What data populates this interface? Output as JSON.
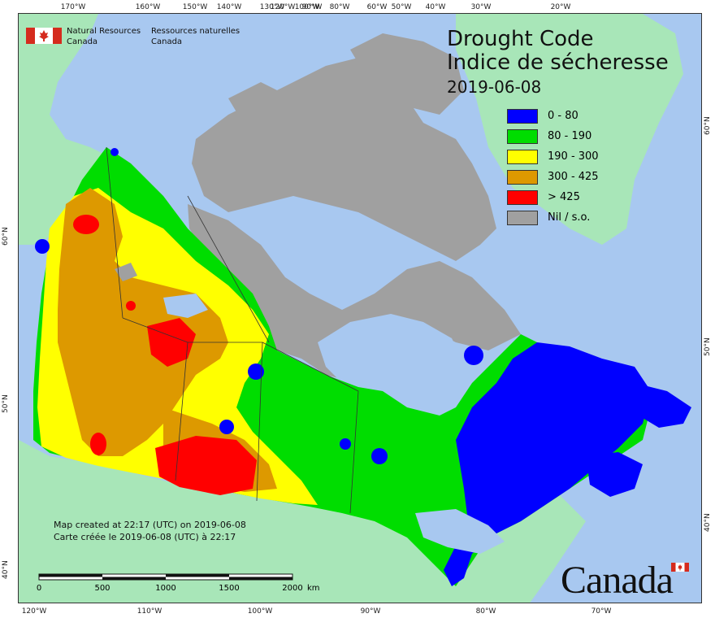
{
  "title": {
    "en": "Drought Code",
    "fr": "Indice de sécheresse",
    "date": "2019-06-08"
  },
  "organization": {
    "en_line1": "Natural Resources",
    "en_line2": "Canada",
    "fr_line1": "Ressources naturelles",
    "fr_line2": "Canada"
  },
  "legend": [
    {
      "label": "0 - 80",
      "color": "#0000ff"
    },
    {
      "label": "80 - 190",
      "color": "#00dd00"
    },
    {
      "label": "190 - 300",
      "color": "#ffff00"
    },
    {
      "label": "300 - 425",
      "color": "#dd9900"
    },
    {
      "label": "> 425",
      "color": "#ff0000"
    },
    {
      "label": "Nil / s.o.",
      "color": "#a0a0a0"
    }
  ],
  "credit": {
    "en": "Map created at 22:17 (UTC) on 2019-06-08",
    "fr": "Carte créée le 2019-06-08 (UTC) à 22:17"
  },
  "scale": {
    "labels": [
      "0",
      "500",
      "1000",
      "1500",
      "2000"
    ],
    "unit": "km"
  },
  "wordmark": "Canada",
  "graticule": {
    "top": [
      "170°W",
      "160°W",
      "150°W",
      "140°W",
      "130°W",
      "120°W",
      "100°W",
      "90°W",
      "80°W",
      "60°W",
      "50°W",
      "40°W",
      "30°W",
      "20°W"
    ],
    "bottom": [
      "120°W",
      "110°W",
      "100°W",
      "90°W",
      "80°W",
      "70°W"
    ],
    "left": [
      "60°N",
      "50°N",
      "40°N"
    ],
    "right": [
      "60°N",
      "50°N",
      "40°N"
    ]
  },
  "colors": {
    "ocean": "#a8c8f0",
    "land_outside": "#a8e6b8",
    "nil": "#a0a0a0"
  }
}
